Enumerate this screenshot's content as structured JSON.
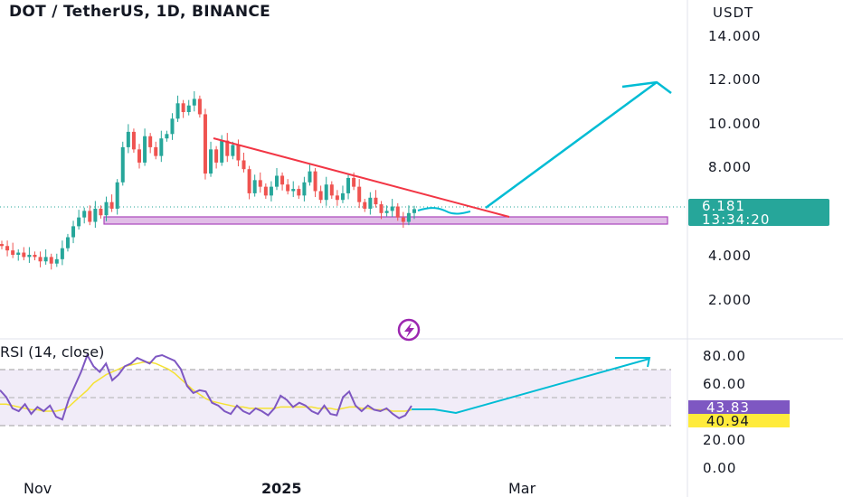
{
  "header": {
    "symbol_title": "DOT / TetherUS, 1D, BINANCE",
    "currency": "USDT"
  },
  "price_panel": {
    "last_price": "6.181",
    "countdown": "13:34:20",
    "price_tag_color": "#26a69a"
  },
  "rsi_panel": {
    "title": "RSI (14, close)",
    "rsi_value": "43.83",
    "rsi_ma_value": "40.94",
    "rsi_color": "#7e57c2",
    "ma_color": "#f5e233"
  },
  "colors": {
    "up": "#26a69a",
    "down": "#ef5350",
    "trendline": "#f23645",
    "arrow": "#00bcd4",
    "support_zone": "#e1bee7",
    "support_border": "#ab47bc"
  },
  "icons": {
    "lightning": "lightning-icon"
  },
  "chart_data": [
    {
      "type": "candlestick",
      "title": "DOT / TetherUS, 1D, BINANCE",
      "ylabel": "USDT",
      "ylim": [
        0,
        15
      ],
      "yticks": [
        "2.000",
        "4.000",
        "8.000",
        "10.000",
        "12.000",
        "14.000"
      ],
      "xticks": [
        "Nov",
        "2025",
        "Mar"
      ],
      "close_path": [
        4.5,
        4.3,
        4.1,
        4.2,
        4.0,
        4.1,
        4.0,
        3.8,
        4.0,
        3.7,
        3.9,
        4.4,
        4.9,
        5.4,
        5.8,
        6.1,
        5.6,
        6.2,
        5.9,
        6.5,
        6.2,
        7.4,
        9.0,
        9.7,
        8.9,
        8.3,
        9.5,
        9.0,
        8.6,
        9.4,
        9.6,
        10.3,
        11.0,
        10.6,
        10.9,
        11.2,
        10.5,
        7.8,
        8.9,
        8.3,
        9.3,
        8.6,
        9.1,
        8.4,
        8.0,
        6.9,
        7.5,
        7.2,
        6.8,
        7.2,
        7.7,
        7.3,
        7.0,
        7.1,
        6.8,
        7.4,
        7.9,
        7.0,
        6.6,
        7.3,
        6.8,
        6.6,
        6.9,
        7.6,
        7.2,
        6.5,
        6.2,
        6.7,
        6.4,
        6.0,
        6.1,
        6.3,
        5.8,
        5.6,
        6.0,
        6.18
      ],
      "last_price": 6.181,
      "support_zone": [
        5.4,
        5.75
      ],
      "trendline": {
        "from": [
          40,
          9.4
        ],
        "to": [
          98,
          5.95
        ]
      },
      "projection_arrow": {
        "from": [
          94,
          6.2
        ],
        "to": [
          125,
          12.0
        ]
      }
    },
    {
      "type": "line",
      "title": "RSI (14, close)",
      "ylim": [
        0,
        80
      ],
      "yticks": [
        "0.00",
        "20.00",
        "40.00",
        "60.00",
        "80.00"
      ],
      "band": [
        30,
        70
      ],
      "series": [
        {
          "name": "RSI",
          "values": [
            55,
            50,
            42,
            40,
            45,
            38,
            43,
            40,
            44,
            36,
            34,
            48,
            58,
            68,
            80,
            72,
            68,
            74,
            62,
            66,
            72,
            74,
            78,
            76,
            74,
            79,
            80,
            78,
            76,
            70,
            58,
            53,
            55,
            54,
            46,
            44,
            40,
            38,
            44,
            40,
            38,
            42,
            40,
            37,
            42,
            51,
            48,
            43,
            46,
            44,
            40,
            38,
            44,
            38,
            37,
            50,
            54,
            44,
            40,
            44,
            41,
            40,
            42,
            38,
            35,
            37,
            43.83
          ]
        },
        {
          "name": "RSI-based MA",
          "values": [
            45,
            45,
            44,
            43,
            42,
            41,
            41,
            40,
            40,
            40,
            41,
            43,
            47,
            51,
            55,
            60,
            63,
            66,
            68,
            70,
            72,
            73,
            74,
            75,
            75,
            74,
            72,
            70,
            67,
            63,
            59,
            55,
            52,
            49,
            47,
            46,
            45,
            44,
            43,
            43,
            42,
            42,
            42,
            42,
            42,
            43,
            43,
            43,
            43,
            43,
            43,
            42,
            42,
            42,
            41,
            42,
            43,
            43,
            42,
            42,
            41,
            41,
            41,
            40,
            40,
            40,
            40.94
          ]
        }
      ],
      "projection_arrow": {
        "from": [
          67,
          36
        ],
        "to": [
          95,
          70
        ]
      }
    }
  ]
}
